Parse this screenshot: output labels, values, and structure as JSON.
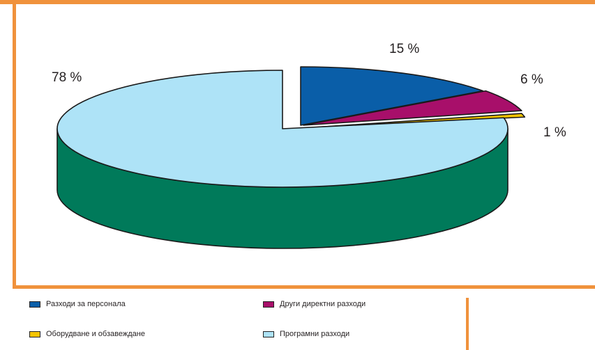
{
  "colors": {
    "frame": "#f0923c",
    "outline": "#1a1a1a"
  },
  "chart_data": {
    "type": "pie",
    "style": "3d-exploded",
    "title": "",
    "slices": [
      {
        "label": "Разходи за персонала",
        "value": 15,
        "display": "15 %",
        "color": "#0a5ea8",
        "side_color": "#084a86"
      },
      {
        "label": "Други директни разходи",
        "value": 6,
        "display": "6 %",
        "color": "#a80f6a",
        "side_color": "#7e0b50"
      },
      {
        "label": "Оборудване и обзавеждане",
        "value": 1,
        "display": "1 %",
        "color": "#f5c400",
        "side_color": "#c4b33c"
      },
      {
        "label": "Програмни разходи",
        "value": 78,
        "display": "78 %",
        "color": "#aee3f7",
        "side_color": "#007a5a"
      }
    ],
    "legend_position": "bottom"
  }
}
